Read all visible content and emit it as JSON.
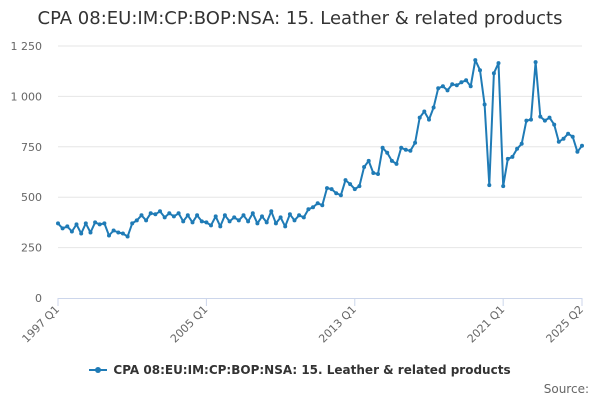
{
  "chart_data": {
    "type": "line",
    "title": "CPA 08:EU:IM:CP:BOP:NSA: 15. Leather & related products",
    "xlabel": "",
    "ylabel": "",
    "ylim": [
      0,
      1250
    ],
    "yticks": [
      0,
      250,
      500,
      750,
      1000,
      1250
    ],
    "ytick_labels": [
      "0",
      "250",
      "500",
      "750",
      "1 000",
      "1 250"
    ],
    "x_start": "1997 Q1",
    "x_end": "2025 Q2",
    "xtick_labels": [
      "1997 Q1",
      "2005 Q1",
      "2013 Q1",
      "2021 Q1",
      "2025 Q2"
    ],
    "grid": true,
    "legend_position": "bottom",
    "series": [
      {
        "name": "CPA 08:EU:IM:CP:BOP:NSA: 15. Leather & related products",
        "color": "#1f7bb6",
        "values": [
          370,
          345,
          355,
          330,
          365,
          320,
          370,
          325,
          375,
          365,
          370,
          310,
          335,
          325,
          320,
          305,
          370,
          385,
          410,
          385,
          420,
          415,
          430,
          400,
          420,
          405,
          420,
          380,
          410,
          375,
          410,
          380,
          375,
          360,
          405,
          355,
          410,
          380,
          400,
          385,
          410,
          380,
          420,
          370,
          405,
          375,
          430,
          370,
          400,
          355,
          415,
          385,
          410,
          400,
          440,
          450,
          470,
          460,
          545,
          540,
          520,
          510,
          585,
          565,
          540,
          555,
          650,
          680,
          620,
          615,
          745,
          720,
          680,
          665,
          745,
          735,
          730,
          770,
          895,
          925,
          885,
          945,
          1040,
          1050,
          1030,
          1060,
          1055,
          1070,
          1080,
          1050,
          1180,
          1130,
          960,
          560,
          1115,
          1165,
          555,
          690,
          700,
          740,
          765,
          880,
          885,
          1170,
          900,
          880,
          895,
          860,
          775,
          790,
          815,
          800,
          725,
          755
        ]
      }
    ]
  },
  "credits": "Source:"
}
